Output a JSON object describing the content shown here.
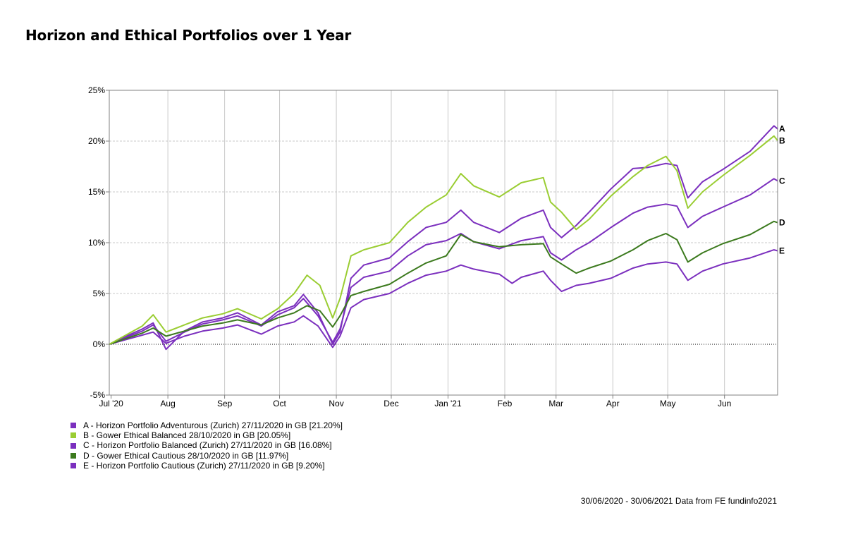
{
  "title": "Horizon and Ethical Portfolios over 1 Year",
  "footer": "30/06/2020 - 30/06/2021 Data from FE fundinfo2021",
  "chart_data": {
    "type": "line",
    "ylim": [
      -5,
      25
    ],
    "y_ticks": [
      -5,
      0,
      5,
      10,
      15,
      20,
      25
    ],
    "y_tick_labels": [
      "-5%",
      "0%",
      "5%",
      "10%",
      "15%",
      "20%",
      "25%"
    ],
    "x_ticks": [
      "Jul '20",
      "Aug",
      "Sep",
      "Oct",
      "Nov",
      "Dec",
      "Jan '21",
      "Feb",
      "Mar",
      "Apr",
      "May",
      "Jun"
    ],
    "x_months": [
      "2020-07",
      "2020-08",
      "2020-09",
      "2020-10",
      "2020-11",
      "2020-12",
      "2021-01",
      "2021-02",
      "2021-03",
      "2021-04",
      "2021-05",
      "2021-06"
    ],
    "x_range": [
      "2020-06-30",
      "2021-06-30"
    ],
    "grid": true,
    "legend_position": "bottom-left",
    "series": [
      {
        "key": "A",
        "legend": "A - Horizon Portfolio Adventurous (Zurich) 27/11/2020 in GB [21.20%]",
        "color": "#7b2fbe",
        "points": [
          [
            "2020-06-30",
            0
          ],
          [
            "2020-07-08",
            0.7
          ],
          [
            "2020-07-18",
            1.5
          ],
          [
            "2020-07-24",
            2.1
          ],
          [
            "2020-07-31",
            -0.5
          ],
          [
            "2020-08-10",
            1.3
          ],
          [
            "2020-08-20",
            2.2
          ],
          [
            "2020-08-31",
            2.6
          ],
          [
            "2020-09-08",
            3.1
          ],
          [
            "2020-09-21",
            1.9
          ],
          [
            "2020-09-30",
            3.2
          ],
          [
            "2020-10-09",
            3.8
          ],
          [
            "2020-10-14",
            4.9
          ],
          [
            "2020-10-22",
            3.1
          ],
          [
            "2020-10-30",
            0
          ],
          [
            "2020-11-03",
            1.2
          ],
          [
            "2020-11-09",
            6.5
          ],
          [
            "2020-11-16",
            7.8
          ],
          [
            "2020-11-30",
            8.5
          ],
          [
            "2020-12-10",
            10.1
          ],
          [
            "2020-12-20",
            11.5
          ],
          [
            "2020-12-31",
            12.0
          ],
          [
            "2021-01-08",
            13.2
          ],
          [
            "2021-01-15",
            12.0
          ],
          [
            "2021-01-29",
            11.0
          ],
          [
            "2021-02-10",
            12.4
          ],
          [
            "2021-02-22",
            13.2
          ],
          [
            "2021-02-26",
            11.5
          ],
          [
            "2021-03-04",
            10.5
          ],
          [
            "2021-03-12",
            11.7
          ],
          [
            "2021-03-19",
            13.0
          ],
          [
            "2021-03-31",
            15.3
          ],
          [
            "2021-04-12",
            17.3
          ],
          [
            "2021-04-20",
            17.4
          ],
          [
            "2021-04-30",
            17.8
          ],
          [
            "2021-05-06",
            17.6
          ],
          [
            "2021-05-12",
            14.4
          ],
          [
            "2021-05-20",
            16.0
          ],
          [
            "2021-05-31",
            17.2
          ],
          [
            "2021-06-15",
            19.0
          ],
          [
            "2021-06-28",
            21.5
          ],
          [
            "2021-06-30",
            21.2
          ]
        ]
      },
      {
        "key": "B",
        "legend": "B - Gower Ethical Balanced 28/10/2020 in GB [20.05%]",
        "color": "#9acd32",
        "points": [
          [
            "2020-06-30",
            0
          ],
          [
            "2020-07-08",
            0.8
          ],
          [
            "2020-07-18",
            1.8
          ],
          [
            "2020-07-24",
            2.9
          ],
          [
            "2020-07-31",
            1.2
          ],
          [
            "2020-08-10",
            1.9
          ],
          [
            "2020-08-20",
            2.6
          ],
          [
            "2020-08-31",
            3.0
          ],
          [
            "2020-09-08",
            3.5
          ],
          [
            "2020-09-21",
            2.5
          ],
          [
            "2020-09-30",
            3.5
          ],
          [
            "2020-10-09",
            5.0
          ],
          [
            "2020-10-16",
            6.8
          ],
          [
            "2020-10-23",
            5.8
          ],
          [
            "2020-10-30",
            2.6
          ],
          [
            "2020-11-03",
            4.5
          ],
          [
            "2020-11-09",
            8.7
          ],
          [
            "2020-11-16",
            9.3
          ],
          [
            "2020-11-30",
            10.0
          ],
          [
            "2020-12-10",
            12.0
          ],
          [
            "2020-12-20",
            13.5
          ],
          [
            "2020-12-31",
            14.7
          ],
          [
            "2021-01-08",
            16.8
          ],
          [
            "2021-01-15",
            15.6
          ],
          [
            "2021-01-29",
            14.5
          ],
          [
            "2021-02-10",
            15.9
          ],
          [
            "2021-02-22",
            16.4
          ],
          [
            "2021-02-26",
            14.0
          ],
          [
            "2021-03-04",
            13.0
          ],
          [
            "2021-03-12",
            11.3
          ],
          [
            "2021-03-19",
            12.3
          ],
          [
            "2021-03-31",
            14.6
          ],
          [
            "2021-04-12",
            16.5
          ],
          [
            "2021-04-20",
            17.6
          ],
          [
            "2021-04-30",
            18.5
          ],
          [
            "2021-05-06",
            17.1
          ],
          [
            "2021-05-12",
            13.4
          ],
          [
            "2021-05-20",
            15.0
          ],
          [
            "2021-05-31",
            16.6
          ],
          [
            "2021-06-15",
            18.6
          ],
          [
            "2021-06-28",
            20.5
          ],
          [
            "2021-06-30",
            20.05
          ]
        ]
      },
      {
        "key": "C",
        "legend": "C - Horizon Portfolio Balanced (Zurich) 27/11/2020 in GB [16.08%]",
        "color": "#7b2fbe",
        "points": [
          [
            "2020-06-30",
            0
          ],
          [
            "2020-07-08",
            0.6
          ],
          [
            "2020-07-18",
            1.3
          ],
          [
            "2020-07-24",
            1.9
          ],
          [
            "2020-07-31",
            0.3
          ],
          [
            "2020-08-10",
            1.2
          ],
          [
            "2020-08-20",
            2.0
          ],
          [
            "2020-08-31",
            2.4
          ],
          [
            "2020-09-08",
            2.8
          ],
          [
            "2020-09-21",
            1.8
          ],
          [
            "2020-09-30",
            2.9
          ],
          [
            "2020-10-09",
            3.6
          ],
          [
            "2020-10-14",
            4.5
          ],
          [
            "2020-10-22",
            2.8
          ],
          [
            "2020-10-30",
            0.2
          ],
          [
            "2020-11-03",
            1.5
          ],
          [
            "2020-11-09",
            5.6
          ],
          [
            "2020-11-16",
            6.6
          ],
          [
            "2020-11-30",
            7.2
          ],
          [
            "2020-12-10",
            8.7
          ],
          [
            "2020-12-20",
            9.8
          ],
          [
            "2020-12-31",
            10.2
          ],
          [
            "2021-01-08",
            10.9
          ],
          [
            "2021-01-15",
            10.1
          ],
          [
            "2021-01-29",
            9.4
          ],
          [
            "2021-02-10",
            10.2
          ],
          [
            "2021-02-22",
            10.6
          ],
          [
            "2021-02-26",
            9.0
          ],
          [
            "2021-03-04",
            8.3
          ],
          [
            "2021-03-12",
            9.3
          ],
          [
            "2021-03-19",
            10.0
          ],
          [
            "2021-03-31",
            11.5
          ],
          [
            "2021-04-12",
            12.9
          ],
          [
            "2021-04-20",
            13.5
          ],
          [
            "2021-04-30",
            13.8
          ],
          [
            "2021-05-06",
            13.6
          ],
          [
            "2021-05-12",
            11.5
          ],
          [
            "2021-05-20",
            12.6
          ],
          [
            "2021-05-31",
            13.5
          ],
          [
            "2021-06-15",
            14.7
          ],
          [
            "2021-06-28",
            16.3
          ],
          [
            "2021-06-30",
            16.08
          ]
        ]
      },
      {
        "key": "D",
        "legend": "D - Gower Ethical Cautious 28/10/2020 in GB [11.97%]",
        "color": "#3c7a1e",
        "points": [
          [
            "2020-06-30",
            0
          ],
          [
            "2020-07-08",
            0.5
          ],
          [
            "2020-07-18",
            1.1
          ],
          [
            "2020-07-24",
            1.6
          ],
          [
            "2020-07-31",
            0.8
          ],
          [
            "2020-08-10",
            1.3
          ],
          [
            "2020-08-20",
            1.8
          ],
          [
            "2020-08-31",
            2.1
          ],
          [
            "2020-09-08",
            2.4
          ],
          [
            "2020-09-21",
            1.9
          ],
          [
            "2020-09-30",
            2.6
          ],
          [
            "2020-10-09",
            3.1
          ],
          [
            "2020-10-16",
            3.8
          ],
          [
            "2020-10-23",
            3.3
          ],
          [
            "2020-10-30",
            1.7
          ],
          [
            "2020-11-03",
            2.8
          ],
          [
            "2020-11-09",
            4.8
          ],
          [
            "2020-11-16",
            5.2
          ],
          [
            "2020-11-30",
            5.9
          ],
          [
            "2020-12-10",
            7.0
          ],
          [
            "2020-12-20",
            8.0
          ],
          [
            "2020-12-31",
            8.7
          ],
          [
            "2021-01-08",
            10.8
          ],
          [
            "2021-01-15",
            10.1
          ],
          [
            "2021-01-29",
            9.6
          ],
          [
            "2021-02-10",
            9.8
          ],
          [
            "2021-02-22",
            9.9
          ],
          [
            "2021-02-26",
            8.6
          ],
          [
            "2021-03-04",
            7.9
          ],
          [
            "2021-03-12",
            7.0
          ],
          [
            "2021-03-19",
            7.5
          ],
          [
            "2021-03-31",
            8.2
          ],
          [
            "2021-04-12",
            9.3
          ],
          [
            "2021-04-20",
            10.2
          ],
          [
            "2021-04-30",
            10.9
          ],
          [
            "2021-05-06",
            10.3
          ],
          [
            "2021-05-12",
            8.1
          ],
          [
            "2021-05-20",
            9.0
          ],
          [
            "2021-05-31",
            9.9
          ],
          [
            "2021-06-15",
            10.8
          ],
          [
            "2021-06-28",
            12.1
          ],
          [
            "2021-06-30",
            11.97
          ]
        ]
      },
      {
        "key": "E",
        "legend": "E - Horizon Portfolio Cautious (Zurich) 27/11/2020 in GB [9.20%]",
        "color": "#7b2fbe",
        "points": [
          [
            "2020-06-30",
            0
          ],
          [
            "2020-07-08",
            0.4
          ],
          [
            "2020-07-18",
            0.9
          ],
          [
            "2020-07-24",
            1.2
          ],
          [
            "2020-07-31",
            0.1
          ],
          [
            "2020-08-10",
            0.8
          ],
          [
            "2020-08-20",
            1.3
          ],
          [
            "2020-08-31",
            1.6
          ],
          [
            "2020-09-08",
            1.9
          ],
          [
            "2020-09-21",
            1.0
          ],
          [
            "2020-09-30",
            1.8
          ],
          [
            "2020-10-09",
            2.2
          ],
          [
            "2020-10-14",
            2.8
          ],
          [
            "2020-10-22",
            1.8
          ],
          [
            "2020-10-30",
            -0.3
          ],
          [
            "2020-11-03",
            0.8
          ],
          [
            "2020-11-09",
            3.6
          ],
          [
            "2020-11-16",
            4.4
          ],
          [
            "2020-11-30",
            5.0
          ],
          [
            "2020-12-10",
            6.0
          ],
          [
            "2020-12-20",
            6.8
          ],
          [
            "2020-12-31",
            7.2
          ],
          [
            "2021-01-08",
            7.8
          ],
          [
            "2021-01-15",
            7.4
          ],
          [
            "2021-01-29",
            6.9
          ],
          [
            "2021-02-05",
            6.0
          ],
          [
            "2021-02-10",
            6.6
          ],
          [
            "2021-02-22",
            7.2
          ],
          [
            "2021-02-26",
            6.3
          ],
          [
            "2021-03-04",
            5.2
          ],
          [
            "2021-03-12",
            5.8
          ],
          [
            "2021-03-19",
            6.0
          ],
          [
            "2021-03-31",
            6.5
          ],
          [
            "2021-04-12",
            7.5
          ],
          [
            "2021-04-20",
            7.9
          ],
          [
            "2021-04-30",
            8.1
          ],
          [
            "2021-05-06",
            7.9
          ],
          [
            "2021-05-12",
            6.3
          ],
          [
            "2021-05-20",
            7.2
          ],
          [
            "2021-05-31",
            7.9
          ],
          [
            "2021-06-15",
            8.5
          ],
          [
            "2021-06-28",
            9.3
          ],
          [
            "2021-06-30",
            9.2
          ]
        ]
      }
    ]
  }
}
